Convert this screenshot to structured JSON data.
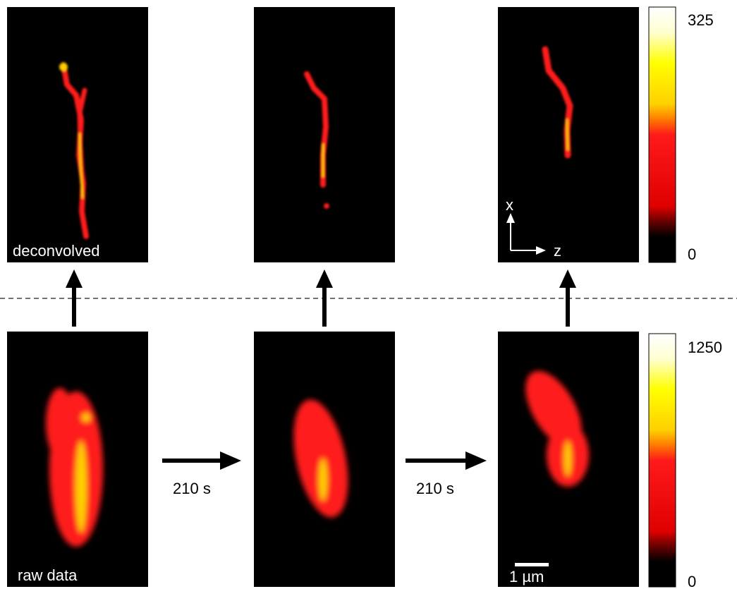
{
  "labels": {
    "deconvolved": "deconvolved",
    "raw": "raw data"
  },
  "intervals": [
    "210 s",
    "210 s"
  ],
  "scale_bar": "1 µm",
  "axes": {
    "x": "x",
    "z": "z"
  },
  "colorbars": [
    {
      "max": 325,
      "min": 0
    },
    {
      "max": 1250,
      "min": 0
    }
  ]
}
